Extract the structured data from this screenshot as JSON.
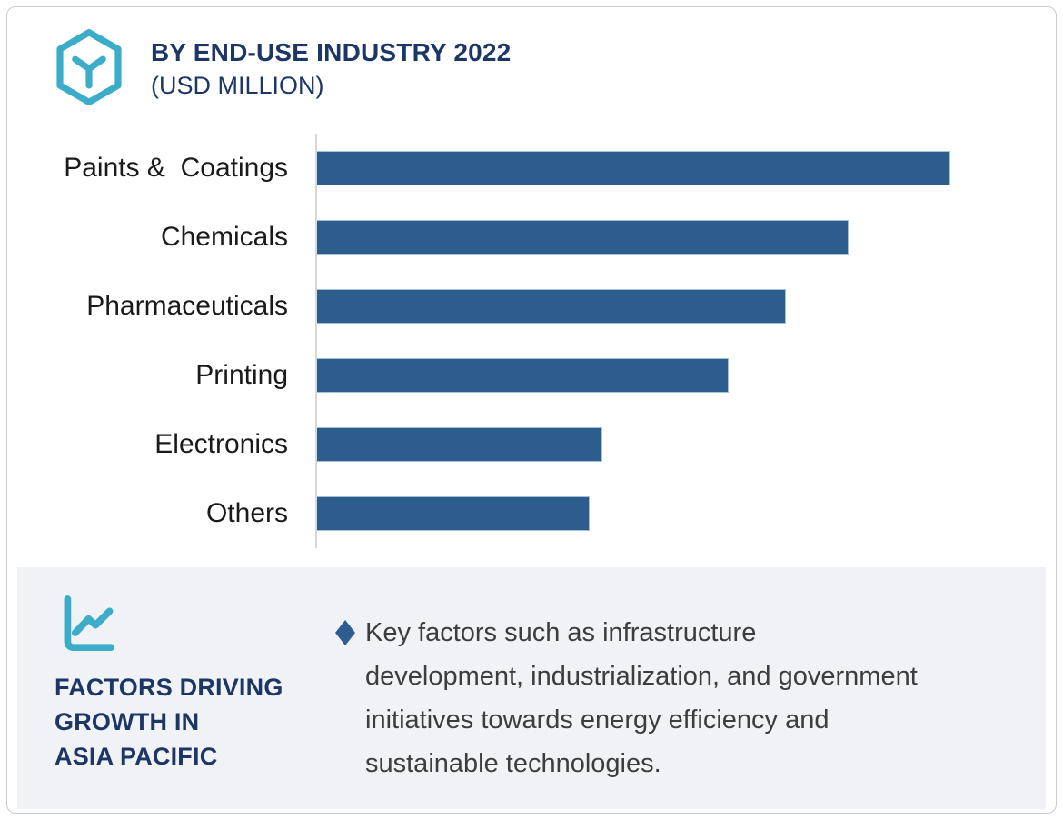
{
  "header": {
    "logo_icon": "hexagon-y-logo-icon",
    "title": "BY END-USE INDUSTRY 2022",
    "subtitle": "(USD MILLION)"
  },
  "chart_data": {
    "type": "bar",
    "orientation": "horizontal",
    "title": "BY END-USE INDUSTRY 2022 (USD MILLION)",
    "categories": [
      "Paints &  Coatings",
      "Chemicals",
      "Pharmaceuticals",
      "Printing",
      "Electronics",
      "Others"
    ],
    "values_pct_of_max": [
      100,
      84,
      74,
      65,
      45,
      43
    ],
    "value_labels_shown": false,
    "axis_tick_labels_shown": false,
    "xlabel": "",
    "ylabel": "",
    "bar_color": "#2c5d8c",
    "bar_border_color": "#a3c2da",
    "axis_line_color": "#d8d8d8",
    "legend": "none",
    "grid": "off"
  },
  "factors_panel": {
    "icon": "line-chart-icon",
    "heading_lines": [
      "FACTORS DRIVING",
      "GROWTH IN",
      "ASIA PACIFIC"
    ],
    "bullet_icon": "diamond-bullet",
    "bullet_text": "Key factors such as infrastructure development, industrialization, and government initiatives towards energy efficiency and sustainable technologies.",
    "bullet_text_lines": [
      "Key factors such as infrastructure",
      "development, industrialization, and government",
      "initiatives towards energy efficiency and",
      "sustainable technologies."
    ]
  },
  "colors": {
    "accent_teal": "#3cadc9",
    "navy": "#1c3765",
    "bar_blue": "#2c5d8c",
    "panel_bg": "#f0f2f6",
    "body_text": "#3d3d3d",
    "diamond_blue": "#2d5d8e",
    "card_border": "#cccccc"
  }
}
